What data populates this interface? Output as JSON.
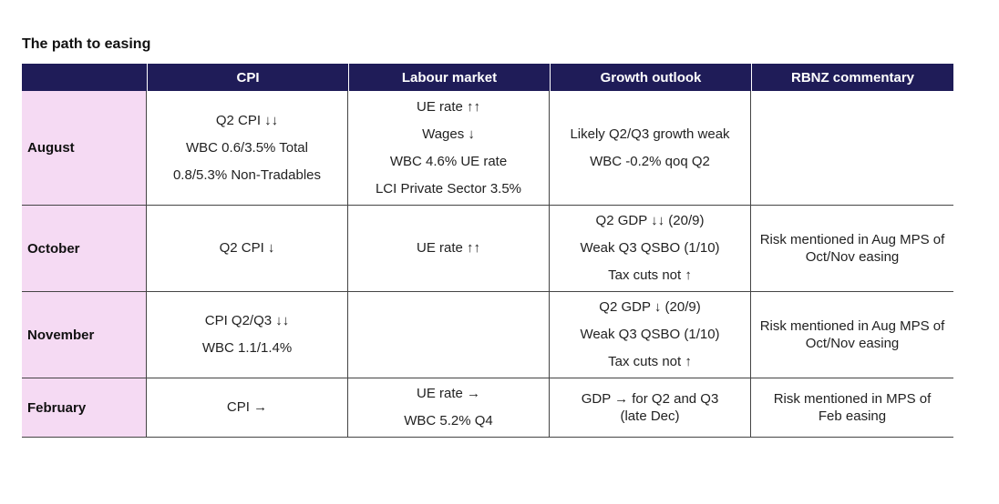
{
  "title": "The path to easing",
  "headers": [
    "",
    "CPI",
    "Labour market",
    "Growth outlook",
    "RBNZ commentary"
  ],
  "rows": [
    {
      "label": "August",
      "cpi": [
        "Q2 CPI ↓↓",
        "WBC 0.6/3.5% Total",
        "0.8/5.3% Non-Tradables"
      ],
      "labour": [
        "UE rate ↑↑",
        "Wages ↓",
        "WBC 4.6% UE rate",
        "LCI Private Sector 3.5%"
      ],
      "growth": [
        "Likely Q2/Q3 growth weak",
        "WBC -0.2% qoq Q2"
      ],
      "rbnz": []
    },
    {
      "label": "October",
      "cpi": [
        "Q2 CPI ↓"
      ],
      "labour": [
        "UE rate ↑↑"
      ],
      "growth": [
        "Q2 GDP ↓↓ (20/9)",
        "Weak Q3 QSBO (1/10)",
        "Tax cuts not ↑"
      ],
      "rbnz": [
        "Risk mentioned in Aug MPS of",
        "Oct/Nov easing"
      ]
    },
    {
      "label": "November",
      "cpi": [
        "CPI Q2/Q3 ↓↓",
        "WBC 1.1/1.4%"
      ],
      "labour": [],
      "growth": [
        "Q2 GDP ↓ (20/9)",
        "Weak Q3 QSBO (1/10)",
        "Tax cuts not ↑"
      ],
      "rbnz": [
        "Risk mentioned in Aug MPS of",
        "Oct/Nov easing"
      ]
    },
    {
      "label": "February",
      "cpi": [
        "CPI →"
      ],
      "labour": [
        "UE rate →",
        "WBC 5.2% Q4"
      ],
      "growth": [
        "GDP → for Q2 and Q3",
        "(late Dec)"
      ],
      "rbnz": [
        "Risk mentioned in MPS of",
        "Feb easing"
      ]
    }
  ]
}
